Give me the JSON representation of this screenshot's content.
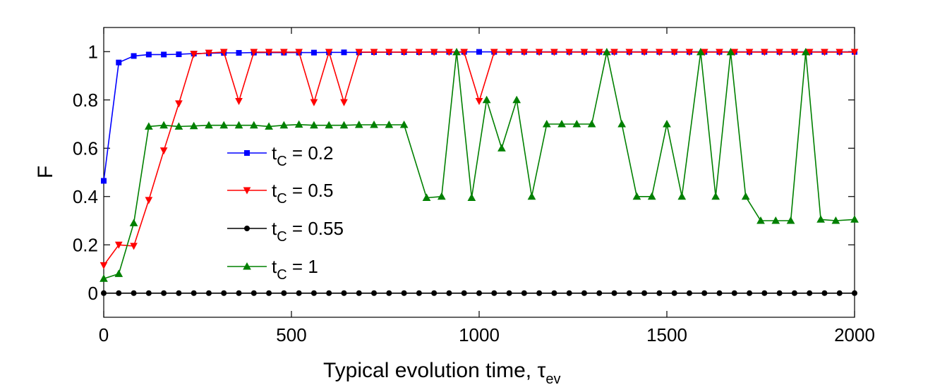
{
  "chart_data": {
    "type": "line",
    "title": "",
    "xlabel": "Typical evolution time, τ",
    "xlabel_sub": "ev",
    "ylabel": "F",
    "xlim": [
      0,
      2000
    ],
    "ylim": [
      -0.1,
      1.1
    ],
    "xticks": [
      0,
      500,
      1000,
      1500,
      2000
    ],
    "xtick_labels": [
      "0",
      "500",
      "1000",
      "1500",
      "2000"
    ],
    "yticks": [
      0,
      0.2,
      0.4,
      0.6,
      0.8,
      1
    ],
    "ytick_labels": [
      "0",
      "0.2",
      "0.4",
      "0.6",
      "0.8",
      "1"
    ],
    "legend_position": "center-left",
    "series": [
      {
        "name": "t_C = 0.2",
        "label_main": "t",
        "label_sub": "C",
        "label_value": " = 0.2",
        "color": "#0000ff",
        "marker": "square",
        "x": [
          0,
          40,
          80,
          120,
          160,
          200,
          240,
          280,
          320,
          360,
          400,
          440,
          480,
          520,
          560,
          600,
          640,
          680,
          720,
          760,
          800,
          840,
          880,
          920,
          960,
          1000,
          1040,
          1080,
          1120,
          1160,
          1200,
          1240,
          1280,
          1320,
          1360,
          1400,
          1440,
          1480,
          1520,
          1560,
          1600,
          1640,
          1680,
          1720,
          1760,
          1800,
          1840,
          1880,
          1920,
          1960,
          2000
        ],
        "y": [
          0.465,
          0.955,
          0.982,
          0.988,
          0.988,
          0.989,
          0.992,
          0.993,
          0.995,
          0.995,
          0.996,
          0.996,
          0.996,
          0.996,
          0.996,
          0.997,
          0.997,
          0.997,
          0.998,
          0.998,
          0.998,
          0.998,
          0.999,
          0.999,
          0.999,
          0.999,
          0.999,
          0.999,
          0.999,
          0.999,
          0.999,
          0.999,
          0.999,
          0.999,
          0.999,
          0.999,
          0.999,
          0.999,
          0.999,
          0.999,
          0.999,
          0.999,
          0.999,
          0.999,
          0.999,
          0.999,
          0.999,
          0.999,
          0.999,
          0.999,
          0.999
        ]
      },
      {
        "name": "t_C = 0.5",
        "label_main": "t",
        "label_sub": "C",
        "label_value": " = 0.5",
        "color": "#ff0000",
        "marker": "triangle-down",
        "x": [
          0,
          40,
          80,
          120,
          160,
          200,
          240,
          280,
          320,
          360,
          400,
          440,
          480,
          520,
          560,
          600,
          640,
          680,
          720,
          760,
          800,
          840,
          880,
          920,
          960,
          1000,
          1040,
          1080,
          1120,
          1160,
          1200,
          1240,
          1280,
          1320,
          1360,
          1400,
          1440,
          1480,
          1520,
          1560,
          1600,
          1640,
          1680,
          1720,
          1760,
          1800,
          1840,
          1880,
          1920,
          1960,
          2000
        ],
        "y": [
          0.115,
          0.2,
          0.195,
          0.385,
          0.59,
          0.785,
          0.99,
          0.995,
          0.998,
          0.795,
          0.998,
          0.998,
          0.998,
          0.998,
          0.79,
          0.998,
          0.79,
          0.998,
          0.998,
          0.998,
          0.998,
          0.998,
          0.998,
          0.998,
          0.998,
          0.795,
          0.998,
          0.998,
          0.998,
          0.998,
          0.998,
          0.998,
          0.998,
          0.998,
          0.998,
          0.998,
          0.998,
          0.998,
          0.998,
          0.998,
          0.998,
          0.998,
          0.998,
          0.998,
          0.998,
          0.998,
          0.998,
          0.998,
          0.998,
          0.998,
          0.998
        ]
      },
      {
        "name": "t_C = 0.55",
        "label_main": "t",
        "label_sub": "C",
        "label_value": " = 0.55",
        "color": "#000000",
        "marker": "circle",
        "x": [
          0,
          40,
          80,
          120,
          160,
          200,
          240,
          280,
          320,
          360,
          400,
          440,
          480,
          520,
          560,
          600,
          640,
          680,
          720,
          760,
          800,
          840,
          880,
          920,
          960,
          1000,
          1040,
          1080,
          1120,
          1160,
          1200,
          1240,
          1280,
          1320,
          1360,
          1400,
          1440,
          1480,
          1520,
          1560,
          1600,
          1640,
          1680,
          1720,
          1760,
          1800,
          1840,
          1880,
          1920,
          1960,
          2000
        ],
        "y": [
          0,
          0,
          0,
          0,
          0,
          0,
          0,
          0,
          0,
          0,
          0,
          0,
          0,
          0,
          0,
          0,
          0,
          0,
          0,
          0,
          0,
          0,
          0,
          0,
          0,
          0,
          0,
          0,
          0,
          0,
          0,
          0,
          0,
          0,
          0,
          0,
          0,
          0,
          0,
          0,
          0,
          0,
          0,
          0,
          0,
          0,
          0,
          0,
          0,
          0,
          0
        ]
      },
      {
        "name": "t_C = 1",
        "label_main": "t",
        "label_sub": "C",
        "label_value": " = 1",
        "color": "#008000",
        "marker": "triangle-up",
        "x": [
          0,
          40,
          80,
          120,
          160,
          200,
          240,
          280,
          320,
          360,
          400,
          440,
          480,
          520,
          560,
          600,
          640,
          680,
          720,
          760,
          800,
          860,
          900,
          940,
          980,
          1020,
          1060,
          1100,
          1140,
          1180,
          1220,
          1260,
          1300,
          1340,
          1380,
          1420,
          1460,
          1500,
          1540,
          1590,
          1630,
          1670,
          1710,
          1750,
          1790,
          1830,
          1870,
          1910,
          1950,
          2000
        ],
        "y": [
          0.06,
          0.08,
          0.29,
          0.69,
          0.695,
          0.69,
          0.692,
          0.695,
          0.695,
          0.695,
          0.695,
          0.69,
          0.695,
          0.698,
          0.695,
          0.695,
          0.695,
          0.697,
          0.697,
          0.697,
          0.697,
          0.395,
          0.4,
          0.998,
          0.395,
          0.8,
          0.6,
          0.8,
          0.4,
          0.7,
          0.7,
          0.7,
          0.7,
          0.998,
          0.7,
          0.4,
          0.4,
          0.7,
          0.4,
          0.998,
          0.4,
          0.998,
          0.4,
          0.3,
          0.3,
          0.3,
          0.998,
          0.305,
          0.3,
          0.305
        ]
      }
    ]
  }
}
